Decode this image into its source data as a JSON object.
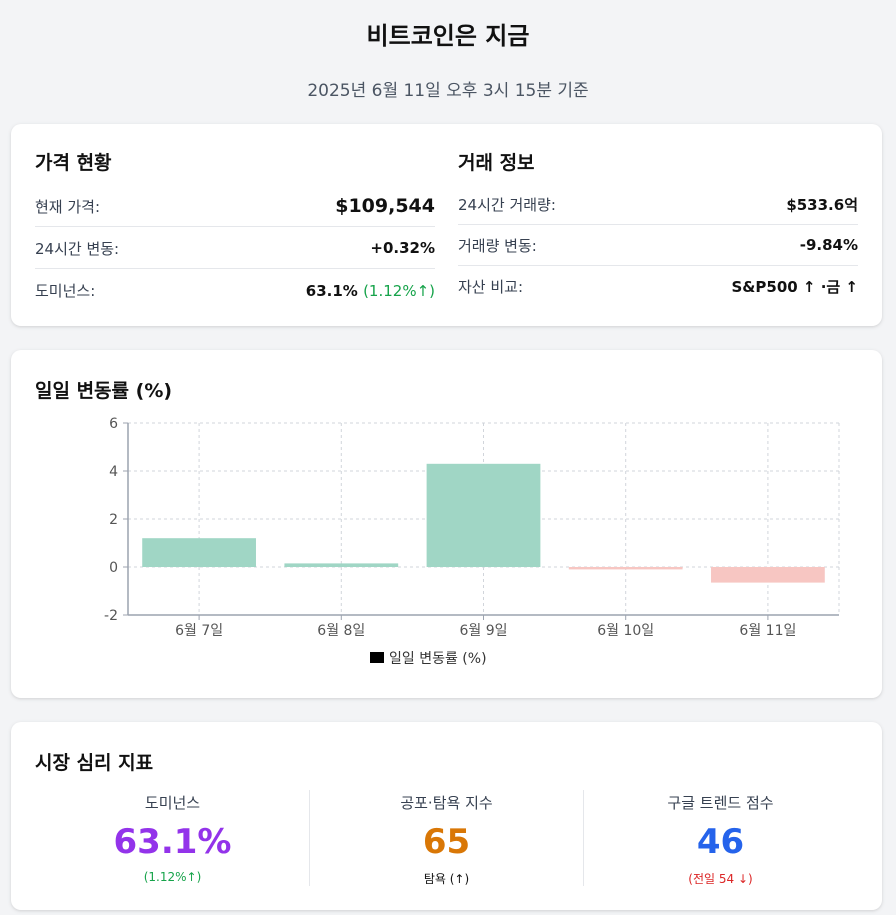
{
  "header": {
    "title": "비트코인은 지금",
    "subtitle": "2025년 6월 11일 오후 3시 15분 기준"
  },
  "price": {
    "title": "가격 현황",
    "rows": [
      {
        "label": "현재 가격:",
        "value": "$109,544"
      },
      {
        "label": "24시간 변동:",
        "value": "+0.32%"
      },
      {
        "label": "도미넌스:",
        "value": "63.1%",
        "sub": "(1.12%↑)"
      }
    ]
  },
  "trade": {
    "title": "거래 정보",
    "rows": [
      {
        "label": "24시간 거래량:",
        "value": "$533.6억"
      },
      {
        "label": "거래량 변동:",
        "value": "-9.84%"
      },
      {
        "label": "자산 비교:",
        "value": "S&P500 ↑ ·금 ↑"
      }
    ]
  },
  "chart_section": {
    "title": "일일 변동률 (%)"
  },
  "chart_data": {
    "type": "bar",
    "categories": [
      "6월 7일",
      "6월 8일",
      "6월 9일",
      "6월 10일",
      "6월 11일"
    ],
    "series": [
      {
        "name": "일일 변동률 (%)",
        "values": [
          1.2,
          0.15,
          4.3,
          -0.1,
          -0.65
        ]
      }
    ],
    "ylim": [
      -2,
      6
    ],
    "yticks": [
      -2,
      0,
      2,
      4,
      6
    ],
    "grid": true,
    "legend": "bottom",
    "colors": {
      "positive": "#a0d6c5",
      "negative": "#f7c6c2",
      "legend_swatch": "#000000",
      "grid": "#d1d5db",
      "axis": "#9ca3af"
    }
  },
  "sentiment": {
    "title": "시장 심리 지표",
    "items": [
      {
        "label": "도미넌스",
        "value": "63.1%",
        "note": "(1.12%↑)",
        "color": "#9333ea"
      },
      {
        "label": "공포·탐욕 지수",
        "value": "65",
        "note": "탐욕 (↑)",
        "color": "#d97706"
      },
      {
        "label": "구글 트렌드 점수",
        "value": "46",
        "note": "(전일 54 ↓)",
        "color": "#2563eb"
      }
    ]
  },
  "colors": {
    "positive": "#16a34a",
    "negative": "#dc2626",
    "background": "#f3f4f6"
  }
}
